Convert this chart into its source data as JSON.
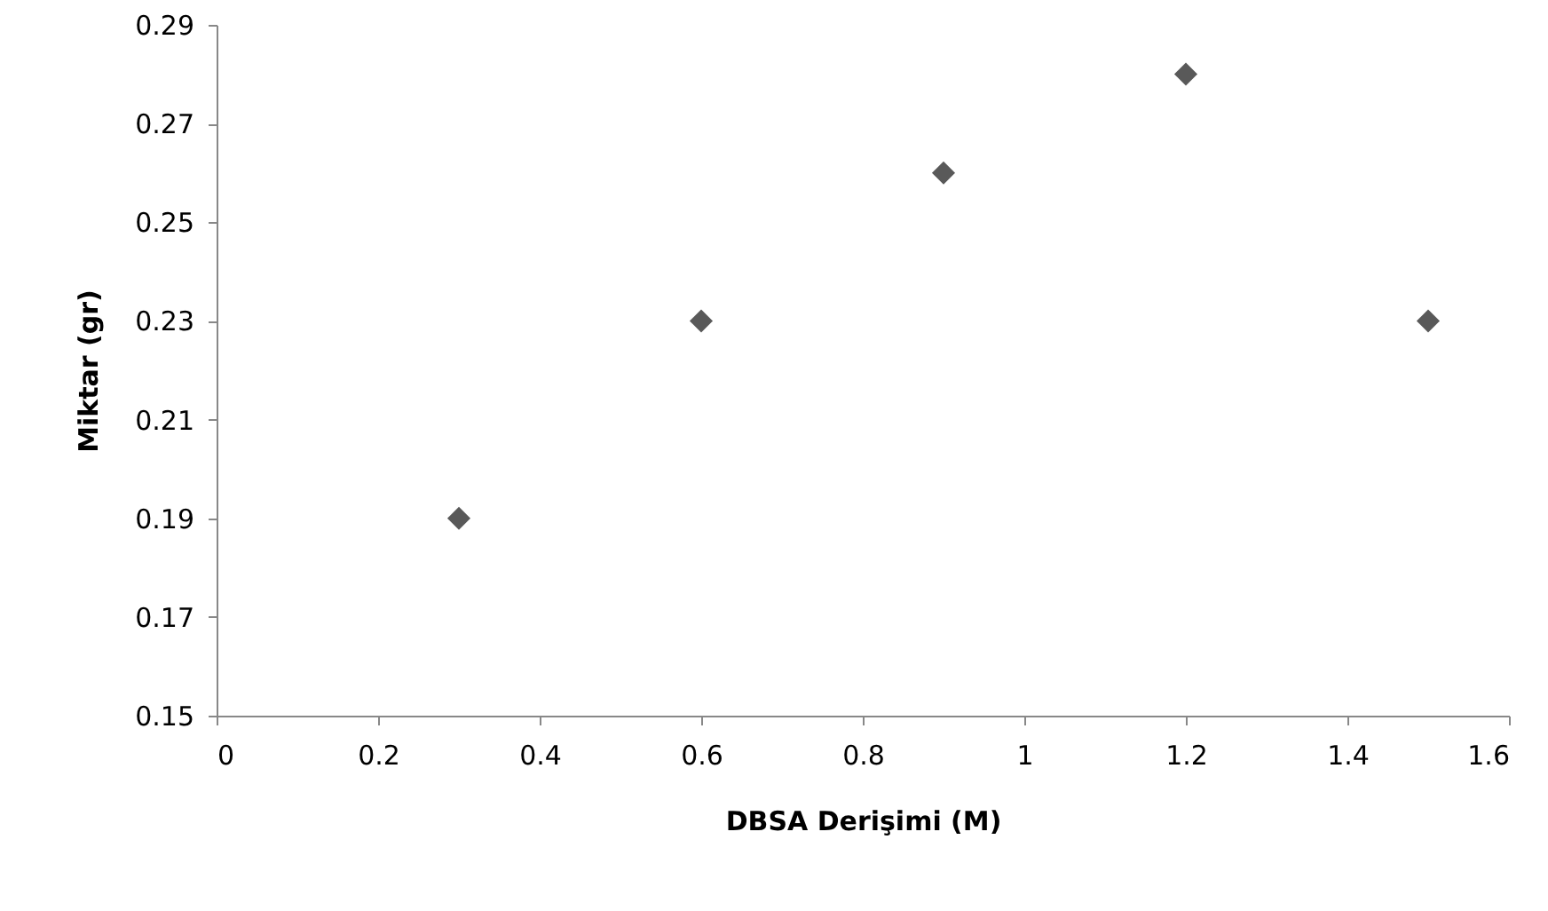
{
  "chart_data": {
    "type": "scatter",
    "xlabel": "DBSA Derişimi (M)",
    "ylabel": "Miktar (gr)",
    "x": [
      0.3,
      0.6,
      0.9,
      1.2,
      1.5
    ],
    "series": [
      {
        "color": "#595959",
        "values": [
          0.19,
          0.23,
          0.26,
          0.28,
          0.23
        ]
      }
    ],
    "xlim": [
      0,
      1.6
    ],
    "xticks": [
      0,
      0.2,
      0.4,
      0.6,
      0.8,
      1,
      1.2,
      1.4,
      1.6
    ],
    "ylim": [
      0.15,
      0.29
    ],
    "yticks": [
      0.15,
      0.17,
      0.19,
      0.21,
      0.23,
      0.25,
      0.27,
      0.29
    ],
    "grid": false,
    "marker": "diamond"
  }
}
